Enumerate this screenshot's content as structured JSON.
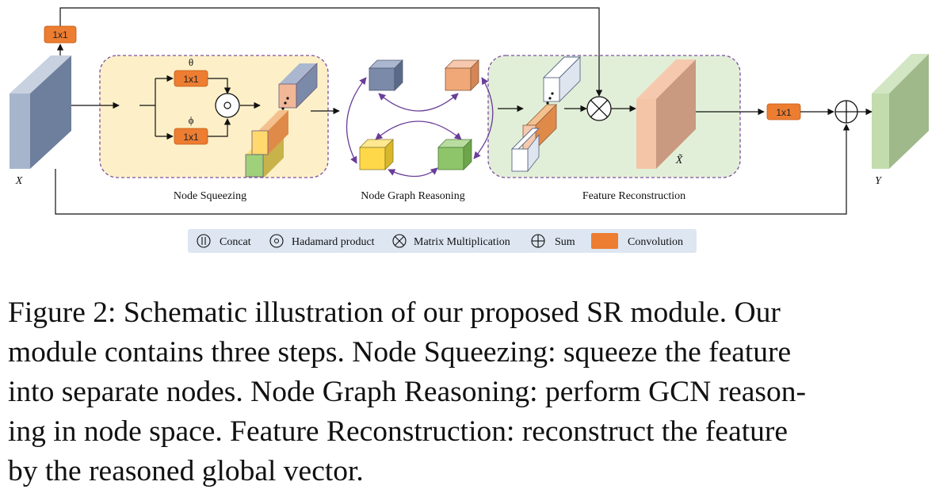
{
  "diagram": {
    "conv_label": "1x1",
    "labels": {
      "input": "X",
      "output": "Y",
      "recon_feature": "X̃",
      "theta": "θ",
      "phi": "ϕ",
      "node_squeezing": "Node Squeezing",
      "node_graph_reasoning": "Node Graph Reasoning",
      "feature_reconstruction": "Feature Reconstruction"
    },
    "legend": {
      "concat": "Concat",
      "hadamard": "Hadamard product",
      "matmul": "Matrix Multiplication",
      "sum": "Sum",
      "convolution": "Convolution"
    },
    "colors": {
      "conv": "#ed7d31",
      "squeeze_bg": "#fdf0c8",
      "recon_bg": "#e2efd8",
      "border": "#7e4fa0",
      "legend_bg": "#dde6f1"
    }
  },
  "caption": {
    "line1": "Figure 2: Schematic illustration of our proposed SR module. Our",
    "line2": "module contains three steps. Node Squeezing: squeeze the feature",
    "line3": "into separate nodes. Node Graph Reasoning: perform GCN reason-",
    "line4": "ing in node space. Feature Reconstruction: reconstruct the feature",
    "line5": "by the reasoned global vector."
  }
}
